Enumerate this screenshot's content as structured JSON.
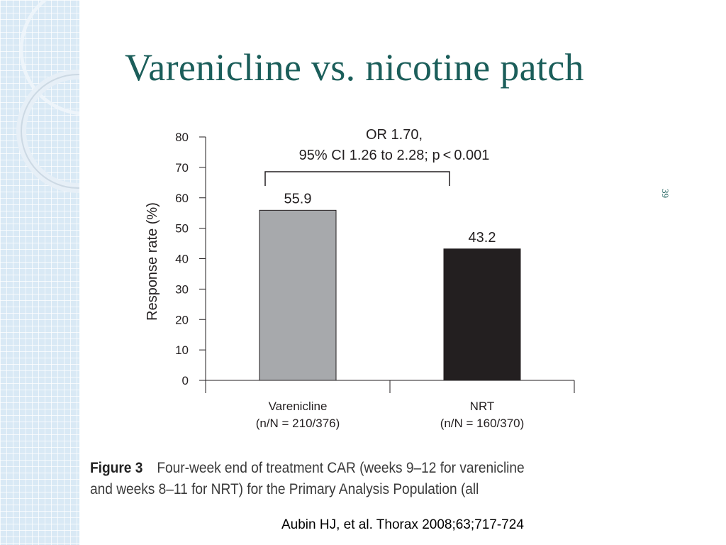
{
  "slide": {
    "title": "Varenicline vs. nicotine patch",
    "slide_number": "39",
    "caption_label": "Figure 3",
    "caption_lines": [
      "Four-week end of treatment CAR (weeks 9–12 for varenicline",
      "and weeks 8–11 for NRT) for the Primary Analysis Population (all"
    ],
    "citation": "Aubin HJ, et al. Thorax 2008;63;717-724"
  },
  "chart_data": {
    "type": "bar",
    "categories": [
      "Varenicline",
      "NRT"
    ],
    "category_sublabels": [
      "(n/N = 210/376)",
      "(n/N = 160/370)"
    ],
    "values": [
      55.9,
      43.2
    ],
    "data_labels": [
      "55.9",
      "43.2"
    ],
    "bar_colors": [
      "#a7a9ac",
      "#231f20"
    ],
    "ylabel": "Response rate (%)",
    "ylim": [
      0,
      80
    ],
    "yticks": [
      0,
      10,
      20,
      30,
      40,
      50,
      60,
      70,
      80
    ],
    "annotation": {
      "lines": [
        "OR 1.70,",
        "95% CI 1.26 to 2.28; p < 0.001"
      ],
      "bracket_between": [
        "Varenicline",
        "NRT"
      ]
    },
    "grid": false,
    "legend": "none"
  }
}
